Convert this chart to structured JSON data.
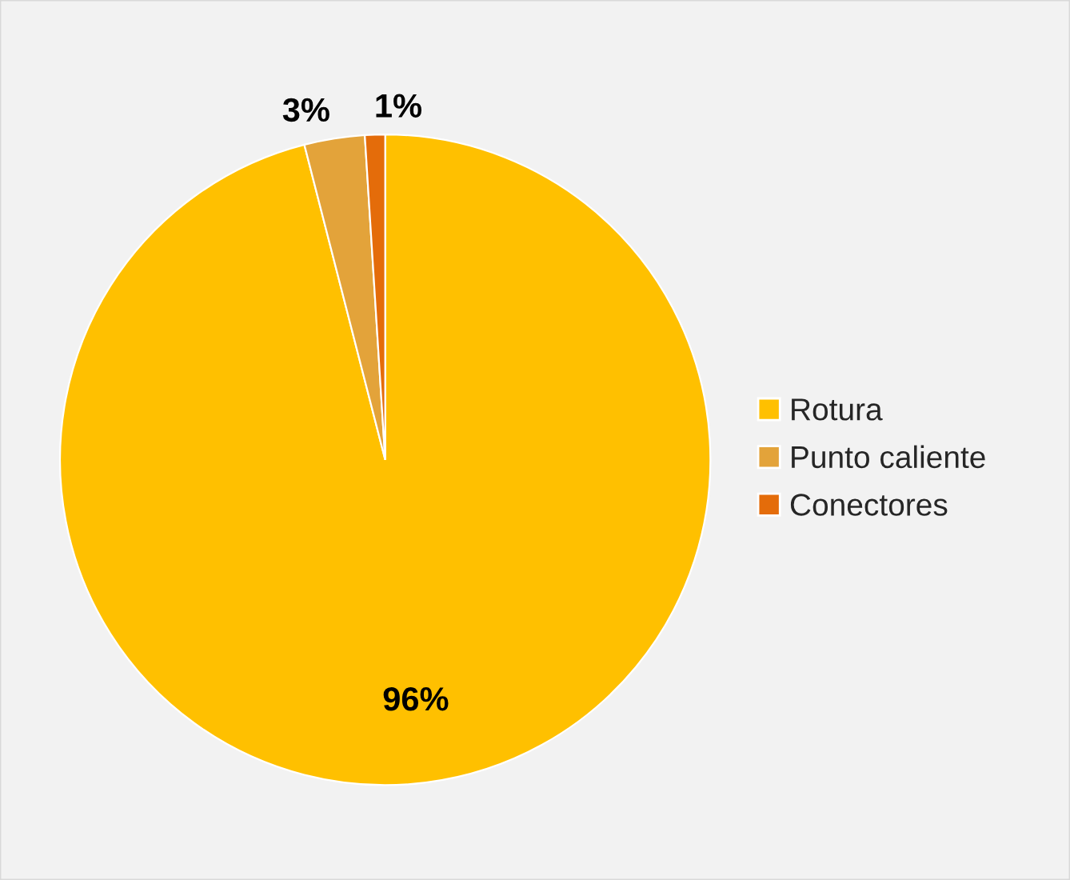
{
  "chart_data": {
    "type": "pie",
    "categories": [
      "Rotura",
      "Punto caliente",
      "Conectores"
    ],
    "values": [
      96,
      3,
      1
    ],
    "colors": [
      "#ffc000",
      "#e3a33a",
      "#e46c0a"
    ],
    "value_labels": [
      "96%",
      "3%",
      "1%"
    ],
    "legend": "right"
  }
}
